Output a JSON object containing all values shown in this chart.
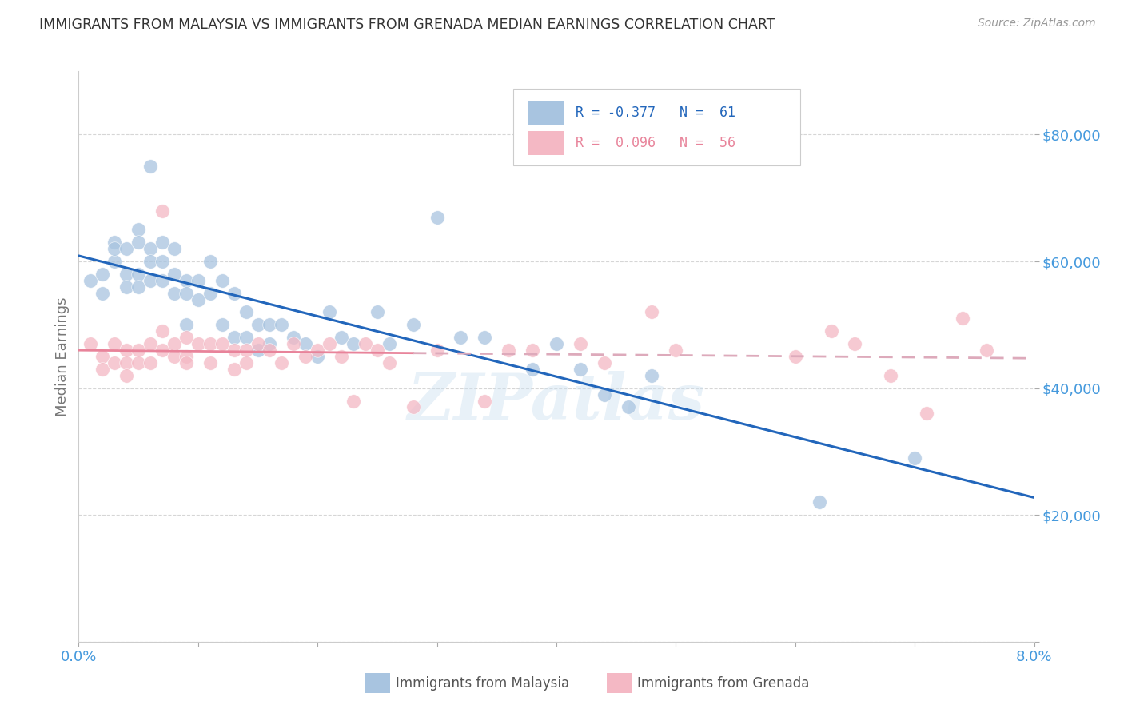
{
  "title": "IMMIGRANTS FROM MALAYSIA VS IMMIGRANTS FROM GRENADA MEDIAN EARNINGS CORRELATION CHART",
  "source": "Source: ZipAtlas.com",
  "ylabel": "Median Earnings",
  "xlim": [
    0.0,
    0.08
  ],
  "ylim": [
    0,
    90000
  ],
  "yticks": [
    0,
    20000,
    40000,
    60000,
    80000
  ],
  "ytick_labels": [
    "",
    "$20,000",
    "$40,000",
    "$60,000",
    "$80,000"
  ],
  "xtick_positions": [
    0.0,
    0.01,
    0.02,
    0.03,
    0.04,
    0.05,
    0.06,
    0.07,
    0.08
  ],
  "xtick_labels": [
    "0.0%",
    "",
    "",
    "",
    "",
    "",
    "",
    "",
    "8.0%"
  ],
  "watermark": "ZIPatlas",
  "malaysia_color": "#a8c4e0",
  "grenada_color": "#f4b8c4",
  "malaysia_line_color": "#2266bb",
  "grenada_line_solid_color": "#e8839a",
  "grenada_line_dashed_color": "#ddaabb",
  "title_color": "#333333",
  "axis_label_color": "#777777",
  "tick_color": "#4499dd",
  "background_color": "#ffffff",
  "grid_color": "#cccccc",
  "malaysia_scatter_x": [
    0.001,
    0.002,
    0.002,
    0.003,
    0.003,
    0.003,
    0.004,
    0.004,
    0.004,
    0.005,
    0.005,
    0.005,
    0.005,
    0.006,
    0.006,
    0.006,
    0.006,
    0.007,
    0.007,
    0.007,
    0.008,
    0.008,
    0.008,
    0.009,
    0.009,
    0.009,
    0.01,
    0.01,
    0.011,
    0.011,
    0.012,
    0.012,
    0.013,
    0.013,
    0.014,
    0.014,
    0.015,
    0.015,
    0.016,
    0.016,
    0.017,
    0.018,
    0.019,
    0.02,
    0.021,
    0.022,
    0.023,
    0.025,
    0.026,
    0.028,
    0.03,
    0.032,
    0.034,
    0.038,
    0.04,
    0.042,
    0.044,
    0.046,
    0.048,
    0.062,
    0.07
  ],
  "malaysia_scatter_y": [
    57000,
    58000,
    55000,
    60000,
    63000,
    62000,
    58000,
    62000,
    56000,
    65000,
    63000,
    58000,
    56000,
    75000,
    62000,
    60000,
    57000,
    63000,
    60000,
    57000,
    62000,
    58000,
    55000,
    57000,
    55000,
    50000,
    57000,
    54000,
    60000,
    55000,
    57000,
    50000,
    55000,
    48000,
    52000,
    48000,
    50000,
    46000,
    50000,
    47000,
    50000,
    48000,
    47000,
    45000,
    52000,
    48000,
    47000,
    52000,
    47000,
    50000,
    67000,
    48000,
    48000,
    43000,
    47000,
    43000,
    39000,
    37000,
    42000,
    22000,
    29000
  ],
  "grenada_scatter_x": [
    0.001,
    0.002,
    0.002,
    0.003,
    0.003,
    0.004,
    0.004,
    0.004,
    0.005,
    0.005,
    0.006,
    0.006,
    0.007,
    0.007,
    0.007,
    0.008,
    0.008,
    0.009,
    0.009,
    0.009,
    0.01,
    0.011,
    0.011,
    0.012,
    0.013,
    0.013,
    0.014,
    0.014,
    0.015,
    0.016,
    0.017,
    0.018,
    0.019,
    0.02,
    0.021,
    0.022,
    0.023,
    0.024,
    0.025,
    0.026,
    0.028,
    0.03,
    0.034,
    0.036,
    0.038,
    0.042,
    0.044,
    0.048,
    0.05,
    0.06,
    0.063,
    0.065,
    0.068,
    0.071,
    0.074,
    0.076
  ],
  "grenada_scatter_y": [
    47000,
    45000,
    43000,
    47000,
    44000,
    46000,
    44000,
    42000,
    46000,
    44000,
    47000,
    44000,
    68000,
    49000,
    46000,
    47000,
    45000,
    48000,
    45000,
    44000,
    47000,
    47000,
    44000,
    47000,
    46000,
    43000,
    46000,
    44000,
    47000,
    46000,
    44000,
    47000,
    45000,
    46000,
    47000,
    45000,
    38000,
    47000,
    46000,
    44000,
    37000,
    46000,
    38000,
    46000,
    46000,
    47000,
    44000,
    52000,
    46000,
    45000,
    49000,
    47000,
    42000,
    36000,
    51000,
    46000
  ]
}
